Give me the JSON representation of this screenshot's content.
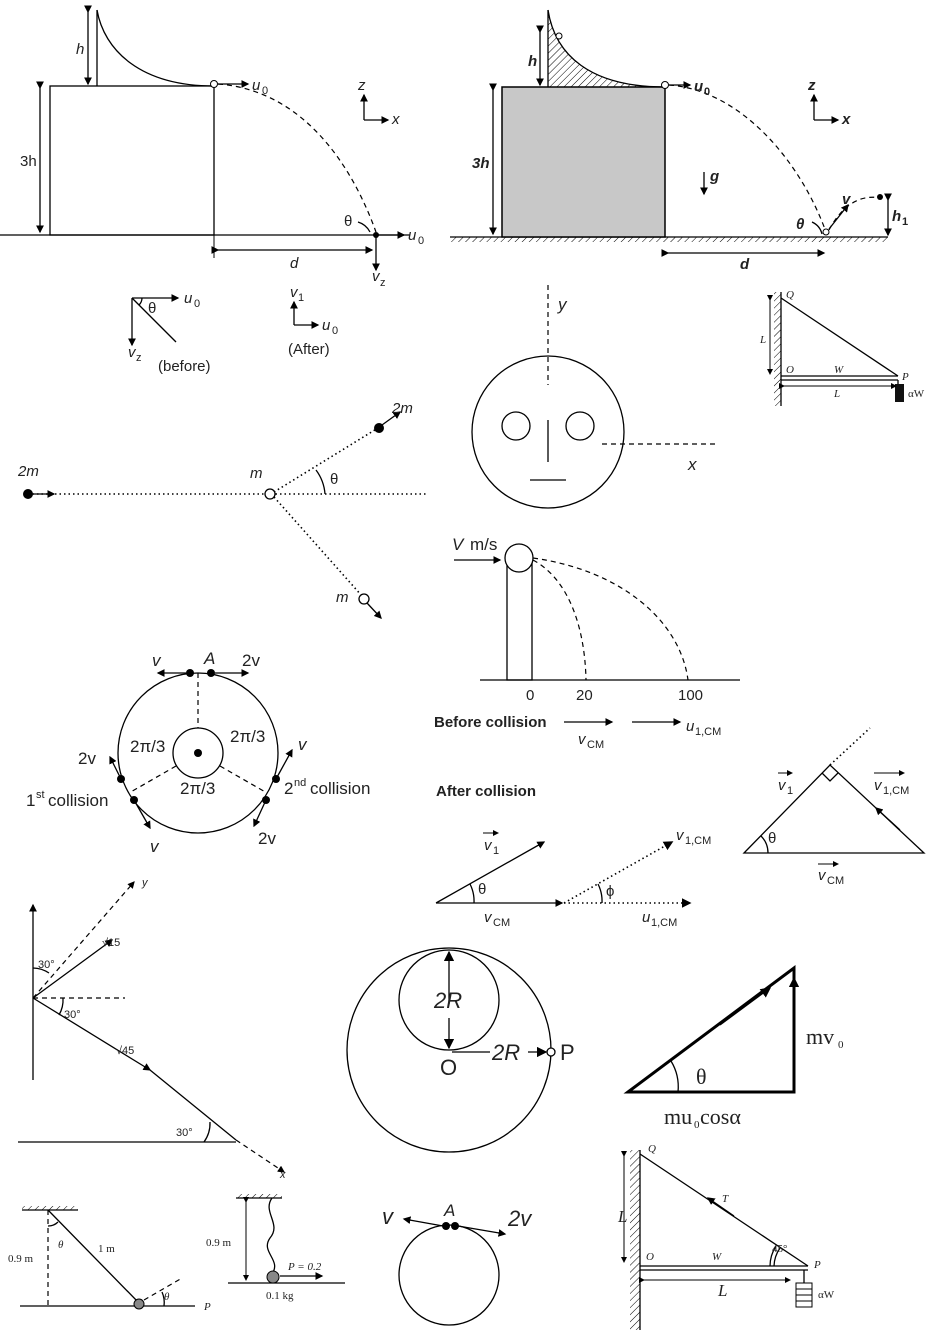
{
  "fig1": {
    "h": "h",
    "three_h": "3h",
    "u0": "u",
    "u0_sub": "0",
    "d": "d",
    "theta": "θ",
    "vz": "v",
    "vz_sub": "z",
    "z": "z",
    "x": "x",
    "v1": "v",
    "v1_sub": "1",
    "before": "(before)",
    "after": "(After)"
  },
  "fig2": {
    "h": "h",
    "three_h": "3h",
    "u0": "u",
    "u0_sub": "0",
    "z": "z",
    "x": "x",
    "g": "g",
    "theta": "θ",
    "v": "v",
    "h1": "h",
    "h1_sub": "1",
    "d": "d"
  },
  "fig3": {
    "m_left": "2m",
    "m_center": "m",
    "m_up": "2m",
    "m_down": "m",
    "theta": "θ"
  },
  "fig4": {
    "y": "y",
    "x": "x"
  },
  "fig5": {
    "Q": "Q",
    "L_vert": "L",
    "O": "O",
    "W": "W",
    "P": "P",
    "L_horiz": "L",
    "aW": "αW"
  },
  "fig6": {
    "V": "V",
    "unit": "m/s",
    "tick0": "0",
    "tick20": "20",
    "tick100": "100"
  },
  "fig7": {
    "v_top": "v",
    "A": "A",
    "v2_top": "2v",
    "angle_left": "2π/3",
    "angle_right": "2π/3",
    "angle_bottom": "2π/3",
    "v2_left": "2v",
    "v_right": "v",
    "first": "1",
    "first_sup": "st",
    "first_rest": " collision",
    "second": "2",
    "second_sup": "nd",
    "second_rest": " collision",
    "v_bottom": "v",
    "v2_bottom": "2v"
  },
  "fig8": {
    "before": "Before collision",
    "vcm": "v",
    "vcm_sub": "CM",
    "u1cm": "u",
    "u1cm_sub": "1,CM",
    "after": "After collision",
    "v1": "v",
    "v1_sub": "1",
    "v1cm": "v",
    "v1cm_sub": "1,CM",
    "theta": "θ",
    "phi": "ϕ"
  },
  "fig9": {
    "v1": "v",
    "v1_sub": "1",
    "v1cm": "v",
    "v1cm_sub": "1,CM",
    "theta": "θ",
    "vcm": "v",
    "vcm_sub": "CM"
  },
  "fig10": {
    "y": "y",
    "x": "x",
    "a1": "30°",
    "a2": "30°",
    "a3": "30°",
    "sqrt15": "√15",
    "sqrt45": "√45"
  },
  "fig11": {
    "twoR_v": "2R",
    "O": "O",
    "twoR_h": "2R",
    "P": "P"
  },
  "fig12": {
    "mv0": "mv",
    "mv0_sub": "0",
    "theta": "θ",
    "mu0": "mu",
    "mu0_sub": "0",
    "cos": " cosα"
  },
  "fig13": {
    "h": "0.9 m",
    "theta": "θ",
    "len": "1 m",
    "theta2": "θ",
    "P": "P"
  },
  "fig14": {
    "h": "0.9 m",
    "P": "P = 0.2",
    "mass": "0.1 kg"
  },
  "fig15": {
    "v": "v",
    "A": "A",
    "v2": "2v"
  },
  "fig16": {
    "Q": "Q",
    "L": "L",
    "T": "T",
    "O": "O",
    "W": "W",
    "angle": "45°",
    "P": "P",
    "L2": "L",
    "aW": "αW"
  }
}
